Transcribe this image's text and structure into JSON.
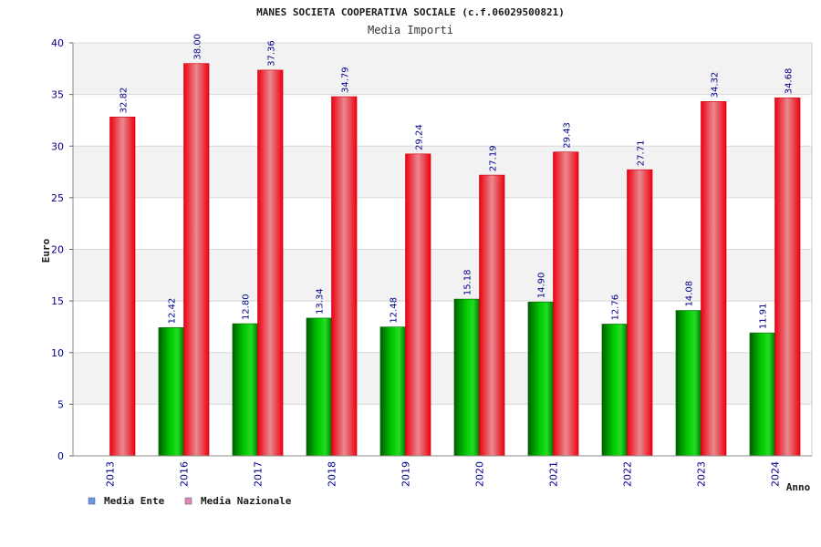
{
  "chart_data": {
    "type": "bar",
    "title": "MANES SOCIETA COOPERATIVA SOCIALE (c.f.06029500821)",
    "subtitle": "Media Importi",
    "xlabel": "Anno",
    "ylabel": "Euro",
    "ylim": [
      0,
      40
    ],
    "yticks": [
      "0",
      "5",
      "10",
      "15",
      "20",
      "25",
      "30",
      "35",
      "40"
    ],
    "grid": true,
    "legend_position": "bottom-left",
    "categories": [
      "2013",
      "2016",
      "2017",
      "2018",
      "2019",
      "2020",
      "2021",
      "2022",
      "2023",
      "2024"
    ],
    "series": [
      {
        "name": "Media Ente",
        "legend_color": "#6699ee",
        "bar_color": "#00b300",
        "values": [
          null,
          12.42,
          12.8,
          13.34,
          12.48,
          15.18,
          14.9,
          12.76,
          14.08,
          11.91
        ],
        "labels": [
          "",
          "12.42",
          "12.80",
          "13.34",
          "12.48",
          "15.18",
          "14.90",
          "12.76",
          "14.08",
          "11.91"
        ]
      },
      {
        "name": "Media Nazionale",
        "legend_color": "#dd88bb",
        "bar_color": "#ee1122",
        "values": [
          32.82,
          38.0,
          37.36,
          34.79,
          29.24,
          27.19,
          29.43,
          27.71,
          34.32,
          34.68
        ],
        "labels": [
          "32.82",
          "38.00",
          "37.36",
          "34.79",
          "29.24",
          "27.19",
          "29.43",
          "27.71",
          "34.32",
          "34.68"
        ]
      }
    ]
  }
}
